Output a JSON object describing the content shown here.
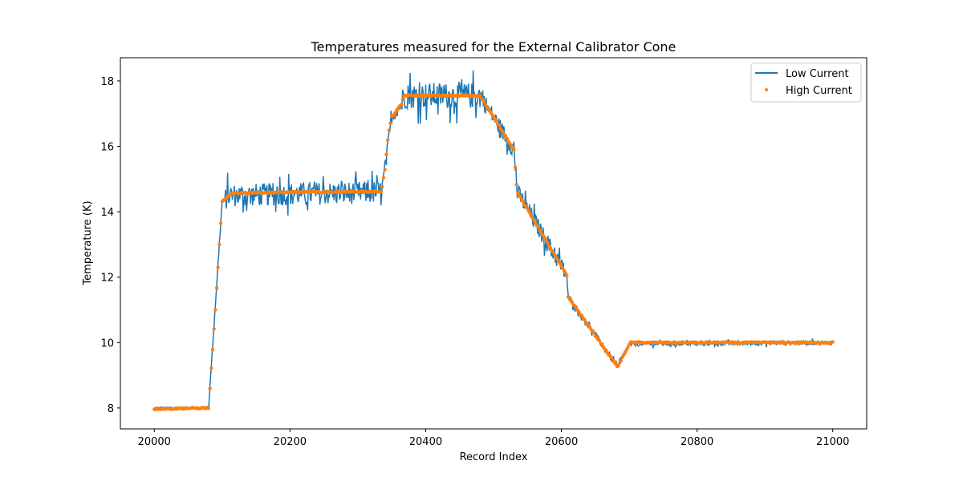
{
  "chart_data": {
    "type": "line",
    "title": "Temperatures measured for the External Calibrator Cone",
    "xlabel": "Record Index",
    "ylabel": "Temperature (K)",
    "xlim": [
      19950,
      21050
    ],
    "ylim": [
      7.36,
      18.71
    ],
    "xticks": [
      20000,
      20200,
      20400,
      20600,
      20800,
      21000
    ],
    "yticks": [
      8,
      10,
      12,
      14,
      16,
      18
    ],
    "grid": false,
    "legend_position": "top-right",
    "series": [
      {
        "name": "Low Current",
        "kind": "line",
        "color": "#1f77b4",
        "x_range": [
          20000,
          21000
        ],
        "note": "noisy trace following the same profile as High Current; noise amplitude about ±0.1 K at 8 K, about ±0.5 K on 14.6 K and 17.5 K plateaus, about ±0.1 K at 10 K",
        "keypoints": [
          [
            20000,
            8.0
          ],
          [
            20080,
            8.0
          ],
          [
            20100,
            14.3
          ],
          [
            20110,
            14.5
          ],
          [
            20335,
            14.6
          ],
          [
            20350,
            16.9
          ],
          [
            20365,
            17.3
          ],
          [
            20367,
            17.55
          ],
          [
            20480,
            17.55
          ],
          [
            20530,
            15.9
          ],
          [
            20535,
            14.6
          ],
          [
            20608,
            12.05
          ],
          [
            20610,
            11.4
          ],
          [
            20683,
            9.25
          ],
          [
            20700,
            9.95
          ],
          [
            21000,
            10.0
          ]
        ]
      },
      {
        "name": "High Current",
        "kind": "scatter",
        "color": "#ff7f0e",
        "x_range": [
          20000,
          21000
        ],
        "keypoints": [
          [
            20000,
            7.97
          ],
          [
            20080,
            8.0
          ],
          [
            20090,
            11.0
          ],
          [
            20100,
            14.3
          ],
          [
            20110,
            14.5
          ],
          [
            20120,
            14.58
          ],
          [
            20335,
            14.62
          ],
          [
            20340,
            15.3
          ],
          [
            20345,
            16.4
          ],
          [
            20350,
            16.9
          ],
          [
            20365,
            17.3
          ],
          [
            20367,
            17.55
          ],
          [
            20480,
            17.55
          ],
          [
            20530,
            15.9
          ],
          [
            20532,
            15.35
          ],
          [
            20535,
            14.6
          ],
          [
            20608,
            12.05
          ],
          [
            20610,
            11.4
          ],
          [
            20683,
            9.25
          ],
          [
            20700,
            9.95
          ],
          [
            20702,
            10.0
          ],
          [
            21000,
            10.0
          ]
        ]
      }
    ]
  }
}
